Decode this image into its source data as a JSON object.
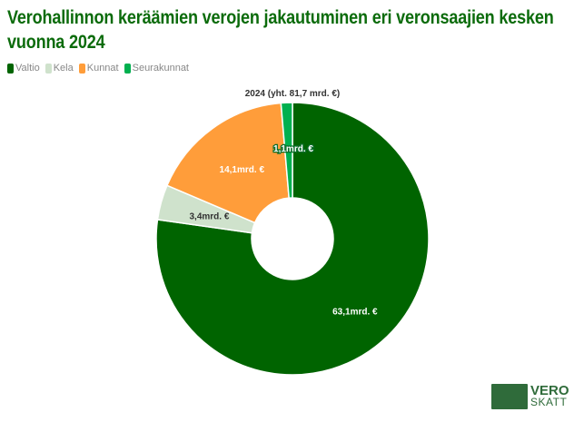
{
  "chart_data": {
    "type": "pie",
    "title": "Verohallinnon keräämien verojen jakautuminen eri veronsaajien kesken vuonna 2024",
    "subtitle": "2024 (yht. 81,7 mrd. €)",
    "legend_position": "top-left",
    "categories": [
      "Valtio",
      "Kela",
      "Kunnat",
      "Seurakunnat"
    ],
    "values": [
      63.1,
      3.4,
      14.1,
      1.1
    ],
    "labels": [
      "63,1mrd. €",
      "3,4mrd. €",
      "14,1mrd. €",
      "1,1mrd. €"
    ],
    "colors": [
      "#006400",
      "#cfe2cc",
      "#ff9d3a",
      "#00b04f"
    ],
    "unit": "mrd. €"
  },
  "logo": {
    "line1": "VERO",
    "line2": "SKATT"
  }
}
